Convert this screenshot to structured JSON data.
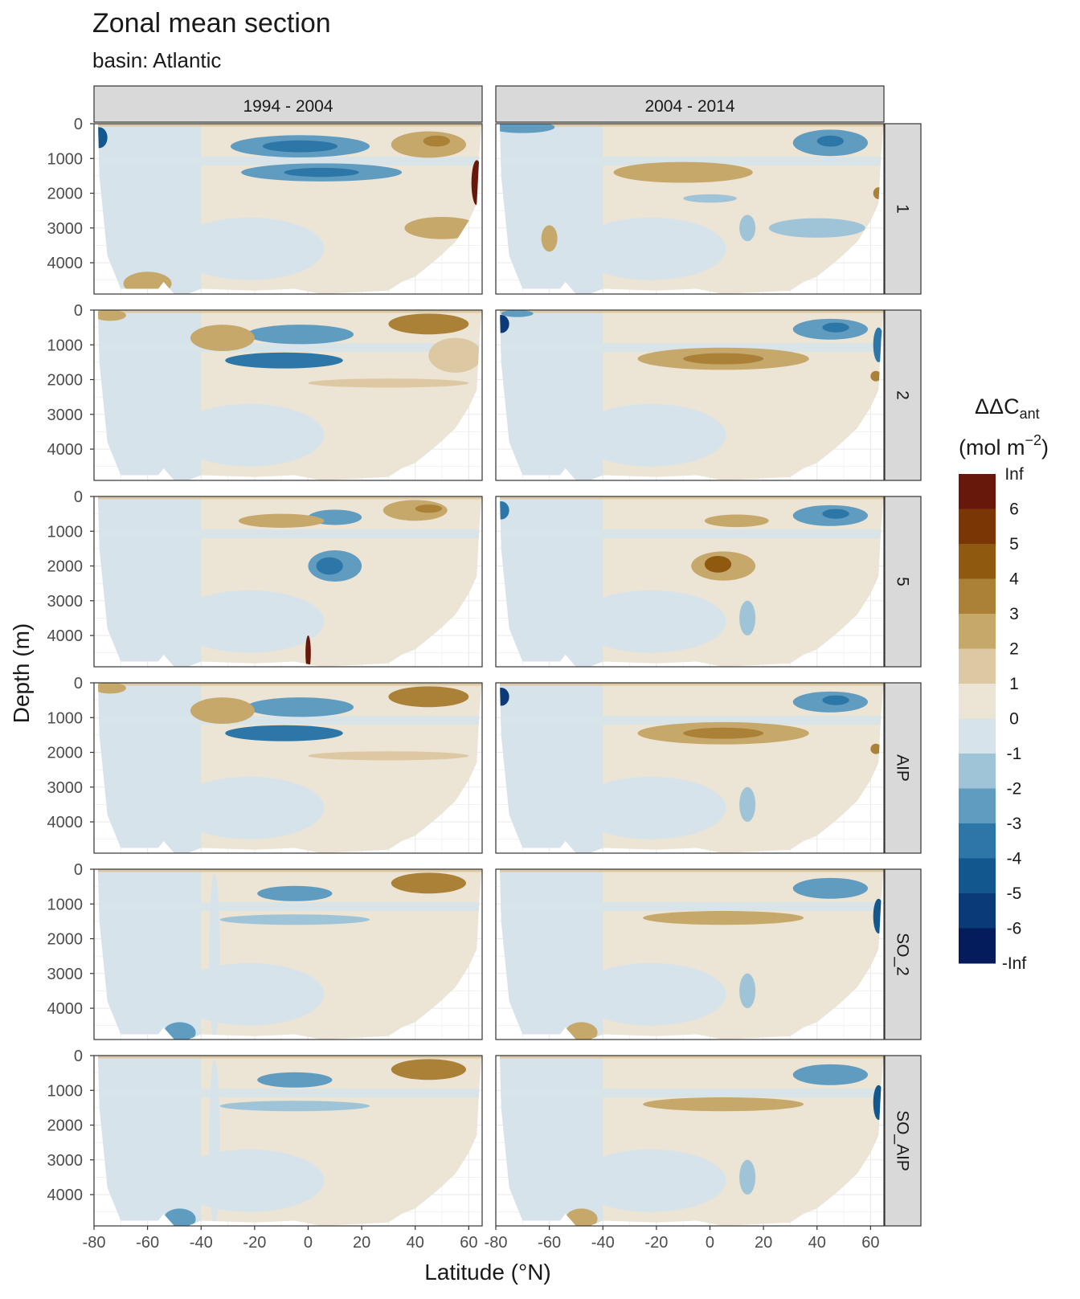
{
  "chart_data": {
    "type": "heatmap",
    "title": "Zonal mean section",
    "subtitle": "basin: Atlantic",
    "xlabel": "Latitude (°N)",
    "ylabel": "Depth (m)",
    "x_ticks": [
      -80,
      -60,
      -40,
      -20,
      0,
      20,
      40,
      60
    ],
    "x_tick_labels": [
      "-80",
      "-60",
      "-40",
      "-20",
      "0",
      "20",
      "40",
      "60"
    ],
    "y_ticks": [
      0,
      1000,
      2000,
      3000,
      4000
    ],
    "y_tick_labels": [
      "0",
      "1000",
      "2000",
      "3000",
      "4000"
    ],
    "xlim": [
      -80,
      65
    ],
    "ylim": [
      4900,
      0
    ],
    "columns": [
      "1994 - 2004",
      "2004 - 2014"
    ],
    "rows": [
      "1",
      "2",
      "5",
      "AIP",
      "SO_2",
      "SO_AIP"
    ],
    "legend": {
      "title_main": "ΔΔC",
      "title_sub": "ant",
      "title_units": "(mol m",
      "title_exp": "−2",
      "title_close": ")",
      "breaks": [
        "Inf",
        "6",
        "5",
        "4",
        "3",
        "2",
        "1",
        "0",
        "-1",
        "-2",
        "-3",
        "-4",
        "-5",
        "-6",
        "-Inf"
      ],
      "colors": [
        "#67180a",
        "#7b3606",
        "#8f5a10",
        "#ab8138",
        "#c7a86b",
        "#dcc8a2",
        "#ece4d4",
        "#d7e3ea",
        "#9fc4d8",
        "#5f9cc0",
        "#2d76a8",
        "#13578f",
        "#0a3a78",
        "#041c5c"
      ]
    },
    "panel_anomalies": [
      [
        [
          {
            "lat": -3,
            "depth": 650,
            "rx": 26,
            "rd": 320,
            "v": -3
          },
          {
            "lat": -3,
            "depth": 650,
            "rx": 14,
            "rd": 170,
            "v": -4
          },
          {
            "lat": 5,
            "depth": 1400,
            "rx": 30,
            "rd": 260,
            "v": -3
          },
          {
            "lat": 5,
            "depth": 1400,
            "rx": 14,
            "rd": 130,
            "v": -4
          },
          {
            "lat": 45,
            "depth": 600,
            "rx": 14,
            "rd": 380,
            "v": 2
          },
          {
            "lat": 48,
            "depth": 500,
            "rx": 5,
            "rd": 160,
            "v": 3
          },
          {
            "lat": 50,
            "depth": 3000,
            "rx": 14,
            "rd": 320,
            "v": 2
          },
          {
            "lat": -60,
            "depth": 4600,
            "rx": 9,
            "rd": 340,
            "v": 2
          },
          {
            "lat": 63,
            "depth": 1700,
            "rx": 2,
            "rd": 650,
            "v": 7
          },
          {
            "lat": -78,
            "depth": 400,
            "rx": 3,
            "rd": 300,
            "v": -5
          }
        ],
        [
          {
            "lat": -10,
            "depth": 1400,
            "rx": 26,
            "rd": 300,
            "v": 2
          },
          {
            "lat": 45,
            "depth": 550,
            "rx": 14,
            "rd": 380,
            "v": -3
          },
          {
            "lat": 45,
            "depth": 500,
            "rx": 5,
            "rd": 160,
            "v": -4
          },
          {
            "lat": 40,
            "depth": 3000,
            "rx": 18,
            "rd": 280,
            "v": -2
          },
          {
            "lat": -60,
            "depth": 3300,
            "rx": 3,
            "rd": 380,
            "v": 2
          },
          {
            "lat": 14,
            "depth": 3000,
            "rx": 3,
            "rd": 380,
            "v": -2
          },
          {
            "lat": 0,
            "depth": 2150,
            "rx": 10,
            "rd": 120,
            "v": -2
          },
          {
            "lat": -70,
            "depth": 100,
            "rx": 12,
            "rd": 170,
            "v": -3
          },
          {
            "lat": 63,
            "depth": 2000,
            "rx": 2,
            "rd": 170,
            "v": 3
          }
        ]
      ],
      [
        [
          {
            "lat": -3,
            "depth": 700,
            "rx": 20,
            "rd": 280,
            "v": -3
          },
          {
            "lat": -9,
            "depth": 1450,
            "rx": 22,
            "rd": 230,
            "v": -4
          },
          {
            "lat": -32,
            "depth": 800,
            "rx": 12,
            "rd": 380,
            "v": 2
          },
          {
            "lat": 45,
            "depth": 400,
            "rx": 15,
            "rd": 300,
            "v": 3
          },
          {
            "lat": -74,
            "depth": 150,
            "rx": 6,
            "rd": 160,
            "v": 2
          },
          {
            "lat": 30,
            "depth": 2100,
            "rx": 30,
            "rd": 130,
            "v": 1
          },
          {
            "lat": 55,
            "depth": 1300,
            "rx": 10,
            "rd": 500,
            "v": 1
          }
        ],
        [
          {
            "lat": 5,
            "depth": 1400,
            "rx": 32,
            "rd": 320,
            "v": 2
          },
          {
            "lat": 5,
            "depth": 1400,
            "rx": 15,
            "rd": 160,
            "v": 3
          },
          {
            "lat": 45,
            "depth": 550,
            "rx": 14,
            "rd": 300,
            "v": -3
          },
          {
            "lat": 47,
            "depth": 500,
            "rx": 5,
            "rd": 140,
            "v": -4
          },
          {
            "lat": -78,
            "depth": 400,
            "rx": 3,
            "rd": 260,
            "v": -6
          },
          {
            "lat": -72,
            "depth": 100,
            "rx": 6,
            "rd": 100,
            "v": -3
          },
          {
            "lat": 63,
            "depth": 1000,
            "rx": 2,
            "rd": 500,
            "v": -4
          },
          {
            "lat": 62,
            "depth": 1900,
            "rx": 2,
            "rd": 150,
            "v": 3
          }
        ]
      ],
      [
        [
          {
            "lat": 10,
            "depth": 2000,
            "rx": 10,
            "rd": 450,
            "v": -3
          },
          {
            "lat": 8,
            "depth": 2000,
            "rx": 5,
            "rd": 250,
            "v": -4
          },
          {
            "lat": 10,
            "depth": 600,
            "rx": 10,
            "rd": 220,
            "v": -3
          },
          {
            "lat": 0,
            "depth": 4500,
            "rx": 1,
            "rd": 500,
            "v": 7
          },
          {
            "lat": -10,
            "depth": 700,
            "rx": 16,
            "rd": 200,
            "v": 2
          },
          {
            "lat": 40,
            "depth": 400,
            "rx": 12,
            "rd": 300,
            "v": 2
          },
          {
            "lat": 45,
            "depth": 350,
            "rx": 5,
            "rd": 120,
            "v": 3
          }
        ],
        [
          {
            "lat": 5,
            "depth": 2000,
            "rx": 12,
            "rd": 420,
            "v": 2
          },
          {
            "lat": 3,
            "depth": 1950,
            "rx": 5,
            "rd": 240,
            "v": 4
          },
          {
            "lat": 45,
            "depth": 550,
            "rx": 14,
            "rd": 300,
            "v": -3
          },
          {
            "lat": 47,
            "depth": 500,
            "rx": 5,
            "rd": 140,
            "v": -4
          },
          {
            "lat": 10,
            "depth": 700,
            "rx": 12,
            "rd": 180,
            "v": 2
          },
          {
            "lat": -78,
            "depth": 400,
            "rx": 3,
            "rd": 260,
            "v": -4
          },
          {
            "lat": 14,
            "depth": 3500,
            "rx": 3,
            "rd": 500,
            "v": -2
          }
        ]
      ],
      [
        [
          {
            "lat": -3,
            "depth": 700,
            "rx": 20,
            "rd": 280,
            "v": -3
          },
          {
            "lat": -9,
            "depth": 1450,
            "rx": 22,
            "rd": 230,
            "v": -4
          },
          {
            "lat": -32,
            "depth": 800,
            "rx": 12,
            "rd": 380,
            "v": 2
          },
          {
            "lat": 45,
            "depth": 400,
            "rx": 15,
            "rd": 300,
            "v": 3
          },
          {
            "lat": -74,
            "depth": 150,
            "rx": 6,
            "rd": 160,
            "v": 2
          },
          {
            "lat": 30,
            "depth": 2100,
            "rx": 30,
            "rd": 130,
            "v": 1
          }
        ],
        [
          {
            "lat": 5,
            "depth": 1450,
            "rx": 32,
            "rd": 320,
            "v": 2
          },
          {
            "lat": 5,
            "depth": 1450,
            "rx": 15,
            "rd": 160,
            "v": 3
          },
          {
            "lat": 45,
            "depth": 550,
            "rx": 14,
            "rd": 300,
            "v": -3
          },
          {
            "lat": 47,
            "depth": 500,
            "rx": 5,
            "rd": 140,
            "v": -4
          },
          {
            "lat": -78,
            "depth": 400,
            "rx": 3,
            "rd": 260,
            "v": -6
          },
          {
            "lat": 62,
            "depth": 1900,
            "rx": 2,
            "rd": 150,
            "v": 3
          },
          {
            "lat": 14,
            "depth": 3500,
            "rx": 3,
            "rd": 500,
            "v": -2
          }
        ]
      ],
      [
        [
          {
            "lat": -5,
            "depth": 700,
            "rx": 14,
            "rd": 220,
            "v": -3
          },
          {
            "lat": -5,
            "depth": 1450,
            "rx": 28,
            "rd": 150,
            "v": -2
          },
          {
            "lat": 45,
            "depth": 400,
            "rx": 14,
            "rd": 300,
            "v": 3
          },
          {
            "lat": -48,
            "depth": 4700,
            "rx": 6,
            "rd": 300,
            "v": -3
          },
          {
            "lat": -35,
            "depth": 2500,
            "rx": 2,
            "rd": 2400,
            "v": -1
          }
        ],
        [
          {
            "lat": 45,
            "depth": 550,
            "rx": 14,
            "rd": 300,
            "v": -3
          },
          {
            "lat": 5,
            "depth": 1400,
            "rx": 30,
            "rd": 200,
            "v": 2
          },
          {
            "lat": 63,
            "depth": 1350,
            "rx": 2,
            "rd": 500,
            "v": -5
          },
          {
            "lat": 14,
            "depth": 3500,
            "rx": 3,
            "rd": 500,
            "v": -2
          },
          {
            "lat": -48,
            "depth": 4700,
            "rx": 6,
            "rd": 300,
            "v": 2
          }
        ]
      ],
      [
        [
          {
            "lat": -5,
            "depth": 700,
            "rx": 14,
            "rd": 220,
            "v": -3
          },
          {
            "lat": -5,
            "depth": 1450,
            "rx": 28,
            "rd": 150,
            "v": -2
          },
          {
            "lat": 45,
            "depth": 400,
            "rx": 14,
            "rd": 300,
            "v": 3
          },
          {
            "lat": -48,
            "depth": 4700,
            "rx": 6,
            "rd": 300,
            "v": -3
          },
          {
            "lat": -35,
            "depth": 2500,
            "rx": 2,
            "rd": 2400,
            "v": -1
          }
        ],
        [
          {
            "lat": 45,
            "depth": 550,
            "rx": 14,
            "rd": 300,
            "v": -3
          },
          {
            "lat": 5,
            "depth": 1400,
            "rx": 30,
            "rd": 200,
            "v": 2
          },
          {
            "lat": 63,
            "depth": 1350,
            "rx": 2,
            "rd": 500,
            "v": -5
          },
          {
            "lat": 14,
            "depth": 3500,
            "rx": 3,
            "rd": 500,
            "v": -2
          },
          {
            "lat": -48,
            "depth": 4700,
            "rx": 6,
            "rd": 300,
            "v": 2
          }
        ]
      ]
    ]
  }
}
